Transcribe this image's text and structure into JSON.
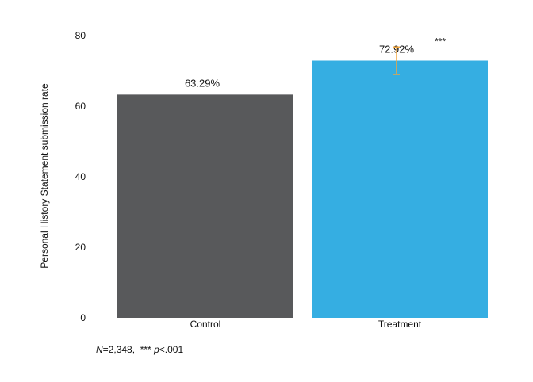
{
  "chart_data": {
    "type": "bar",
    "categories": [
      "Control",
      "Treatment"
    ],
    "values": [
      63.29,
      72.92
    ],
    "value_labels": [
      "63.29%",
      "72.92%"
    ],
    "colors": [
      "#58595b",
      "#35aee2"
    ],
    "error_bars": [
      null,
      {
        "low": 69.0,
        "high": 76.8,
        "color": "#f0a640"
      }
    ],
    "significance": [
      "",
      "***"
    ],
    "ylabel": "Personal History Statement submission rate",
    "xlabel": "",
    "ylim": [
      0,
      80
    ],
    "yticks": [
      0,
      20,
      40,
      60,
      80
    ],
    "grid": false,
    "legend": "none"
  },
  "footnote": {
    "n_symbol": "N",
    "n_text": "=2,348,",
    "stars": "***",
    "p_symbol": "p",
    "p_text": "<.001"
  }
}
